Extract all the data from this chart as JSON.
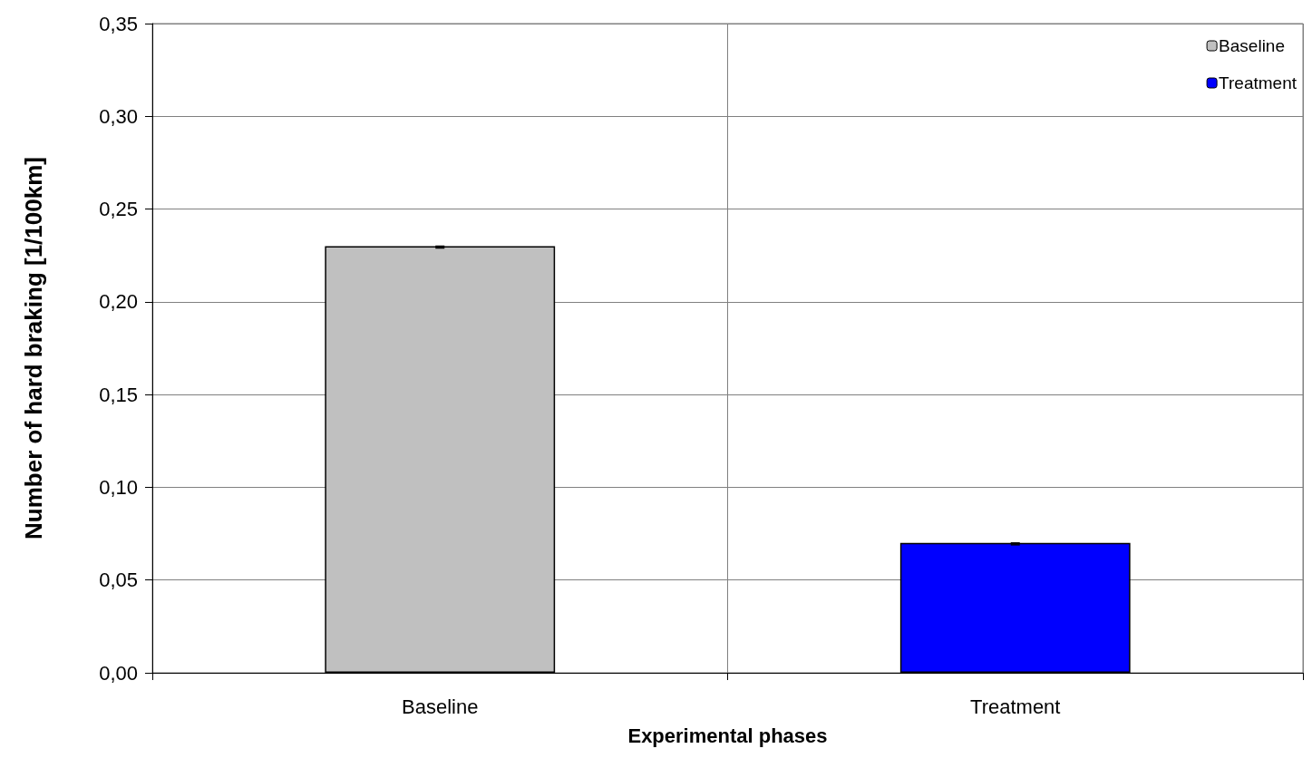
{
  "chart_data": {
    "type": "bar",
    "xlabel": "Experimental phases",
    "ylabel": "Number of hard braking [1/100km]",
    "categories": [
      "Baseline",
      "Treatment"
    ],
    "series": [
      {
        "name": "Baseline",
        "color": "#c0c0c0",
        "values": [
          0.23,
          null
        ],
        "errors": [
          [
            0.229,
            0.23
          ],
          null
        ]
      },
      {
        "name": "Treatment",
        "color": "#0000ff",
        "values": [
          null,
          0.07
        ],
        "errors": [
          null,
          [
            0.069,
            0.07
          ]
        ]
      }
    ],
    "ylim": [
      0,
      0.35
    ],
    "yticks": [
      {
        "value": 0,
        "label": "0,00"
      },
      {
        "value": 0.05,
        "label": "0,05"
      },
      {
        "value": 0.1,
        "label": "0,10"
      },
      {
        "value": 0.15,
        "label": "0,15"
      },
      {
        "value": 0.2,
        "label": "0,20"
      },
      {
        "value": 0.25,
        "label": "0,25"
      },
      {
        "value": 0.3,
        "label": "0,30"
      },
      {
        "value": 0.35,
        "label": "0,35"
      }
    ],
    "grid": true,
    "legend": "top right"
  }
}
